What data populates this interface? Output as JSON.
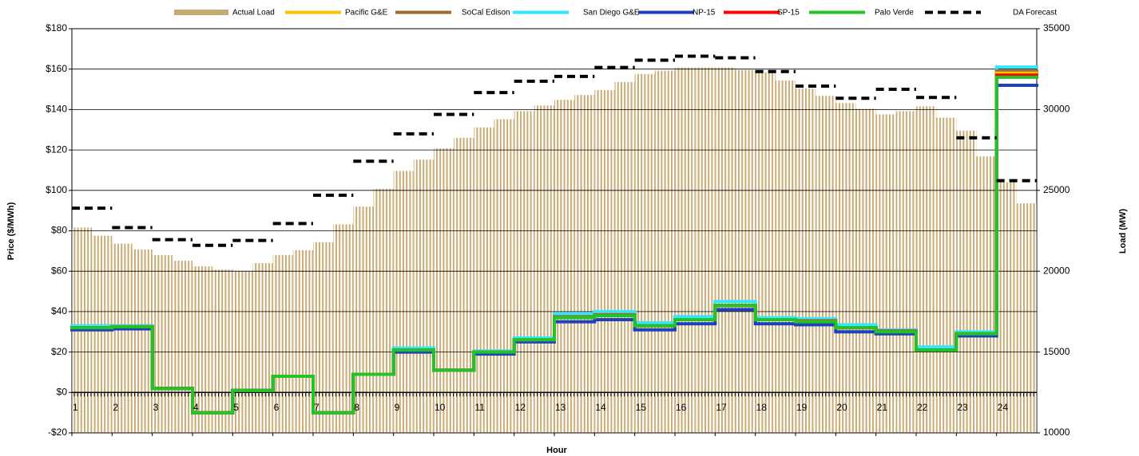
{
  "chart_data": {
    "type": "line",
    "x_label": "Hour",
    "y_label": "Price ($/MWh)",
    "y2_label": "Load (MW)",
    "x": [
      1,
      2,
      3,
      4,
      5,
      6,
      7,
      8,
      9,
      10,
      11,
      12,
      13,
      14,
      15,
      16,
      17,
      18,
      19,
      20,
      21,
      22,
      23,
      24
    ],
    "xlim": [
      1,
      25
    ],
    "xticks": [
      1,
      2,
      3,
      4,
      5,
      6,
      7,
      8,
      9,
      10,
      11,
      12,
      13,
      14,
      15,
      16,
      17,
      18,
      19,
      20,
      21,
      22,
      23,
      24
    ],
    "ylim": [
      -20,
      180
    ],
    "yticks": [
      {
        "value": -20,
        "label": "-$20"
      },
      {
        "value": 0,
        "label": "$0"
      },
      {
        "value": 20,
        "label": "$20"
      },
      {
        "value": 40,
        "label": "$40"
      },
      {
        "value": 60,
        "label": "$60"
      },
      {
        "value": 80,
        "label": "$80"
      },
      {
        "value": 100,
        "label": "$100"
      },
      {
        "value": 120,
        "label": "$120"
      },
      {
        "value": 140,
        "label": "$140"
      },
      {
        "value": 160,
        "label": "$160"
      },
      {
        "value": 180,
        "label": "$180"
      }
    ],
    "y2lim": [
      10000,
      35000
    ],
    "y2ticks": [
      10000,
      15000,
      20000,
      25000,
      30000,
      35000
    ],
    "grid": true,
    "legend": "top",
    "series": [
      {
        "name": "Actual Load",
        "color": "#c8ab74",
        "kind": "bar",
        "axis": "y2",
        "x": [
          1,
          1.5,
          2,
          2.5,
          3,
          3.5,
          4,
          4.5,
          5,
          5.5,
          6,
          6.5,
          7,
          7.5,
          8,
          8.5,
          9,
          9.5,
          10,
          10.5,
          11,
          11.5,
          12,
          12.5,
          13,
          13.5,
          14,
          14.5,
          15,
          15.5,
          16,
          16.5,
          17,
          17.5,
          18,
          18.5,
          19,
          19.5,
          20,
          20.5,
          21,
          21.5,
          22,
          22.5,
          23,
          23.5,
          24,
          24.5
        ],
        "values": [
          22700,
          22200,
          21700,
          21350,
          21000,
          20650,
          20300,
          20100,
          20000,
          20500,
          21000,
          21300,
          21800,
          22900,
          24000,
          25100,
          26200,
          26900,
          27600,
          28250,
          28900,
          29400,
          29900,
          30250,
          30600,
          30900,
          31200,
          31700,
          32200,
          32400,
          32600,
          32600,
          32600,
          32450,
          32300,
          31800,
          31300,
          30850,
          30400,
          30050,
          29700,
          29900,
          30200,
          29500,
          28700,
          27100,
          25500,
          24200
        ]
      },
      {
        "name": "Pacific G&E",
        "color": "#ffc000",
        "kind": "step",
        "values": [
          32,
          32.5,
          2,
          -10,
          1,
          8,
          -10,
          9,
          21,
          11,
          20,
          26,
          37,
          38,
          33,
          36,
          43,
          36,
          35,
          32,
          30,
          21,
          29,
          158
        ]
      },
      {
        "name": "SoCal Edison",
        "color": "#9c6b30",
        "kind": "step",
        "values": [
          32,
          32.5,
          2,
          -10,
          1,
          8,
          -10,
          9,
          21,
          11,
          20,
          26,
          37.5,
          38.5,
          33,
          36,
          43,
          36,
          35.5,
          32,
          30.5,
          21,
          29,
          159
        ]
      },
      {
        "name": "San Diego G&E",
        "color": "#33e5ff",
        "kind": "step",
        "values": [
          33,
          33,
          2,
          -10,
          1,
          8,
          -10,
          9,
          22,
          11,
          20.5,
          27,
          39,
          40,
          34.5,
          37.5,
          45,
          37,
          36.5,
          33.5,
          31,
          22.5,
          30,
          161
        ]
      },
      {
        "name": "NP-15",
        "color": "#1f3fbf",
        "kind": "step",
        "values": [
          31,
          31.5,
          2,
          -10,
          1,
          8,
          -10,
          9,
          20,
          11,
          19,
          25,
          35,
          36,
          31,
          34,
          41,
          34,
          33.5,
          30,
          29,
          21,
          28,
          152
        ]
      },
      {
        "name": "SP-15",
        "color": "#ff0000",
        "kind": "step",
        "values": [
          32,
          32.5,
          2,
          -10,
          1,
          8,
          -10,
          9,
          21,
          11,
          20,
          26,
          37,
          38,
          33,
          36,
          43,
          36,
          35,
          32,
          30,
          21,
          29,
          157
        ]
      },
      {
        "name": "Palo Verde",
        "color": "#22c322",
        "kind": "step",
        "values": [
          32,
          32.5,
          2,
          -10,
          1,
          8,
          -10,
          9,
          21,
          11,
          20,
          26,
          37,
          38,
          33,
          36,
          43,
          36,
          35,
          32,
          30,
          21,
          29,
          156
        ]
      },
      {
        "name": "DA Forecast",
        "color": "#000000",
        "kind": "dash",
        "axis": "y2",
        "values": [
          23900,
          22700,
          21950,
          21600,
          21900,
          22950,
          24700,
          26800,
          28500,
          29700,
          31050,
          31750,
          32050,
          32600,
          33050,
          33300,
          33200,
          32350,
          31450,
          30700,
          31250,
          30750,
          28250,
          25600
        ]
      }
    ]
  }
}
